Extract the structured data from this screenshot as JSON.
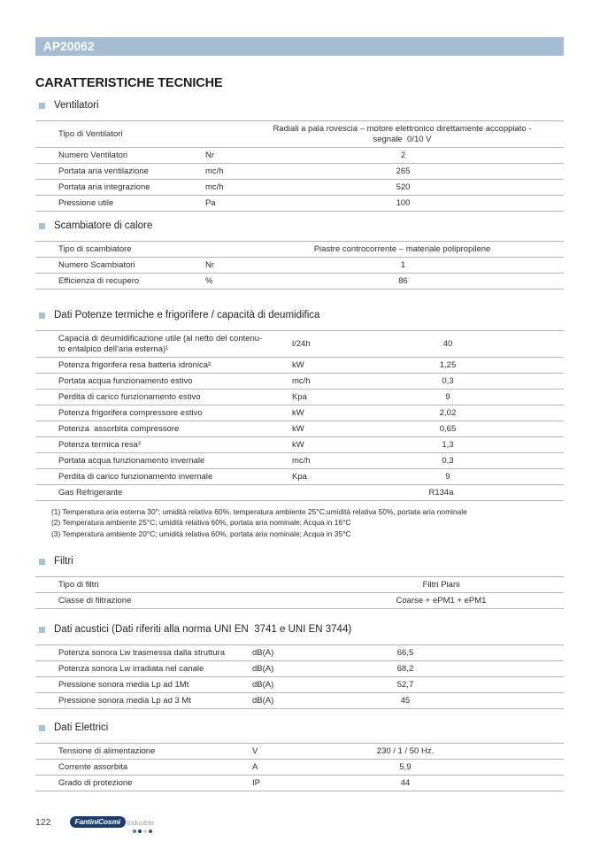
{
  "page": {
    "code": "AP20062",
    "title": "CARATTERISTICHE TECNICHE"
  },
  "colors": {
    "header_bg": "#a5bdd3",
    "bullet": "#a5c1d8",
    "logo_navy": "#1d3c6e"
  },
  "sections": [
    {
      "heading": "Ventilatori",
      "rows": [
        {
          "label": "Tipo di Ventilatori",
          "unit": "",
          "value": "Radiali a pala rovescia – motore elettronico direttamente accoppiato -\nsegnale  0/10 V"
        },
        {
          "label": "Numero Ventilatori",
          "unit": "Nr",
          "value": "2"
        },
        {
          "label": "Portata aria ventilazione",
          "unit": "mc/h",
          "value": "265"
        },
        {
          "label": "Portata aria integrazione",
          "unit": "mc/h",
          "value": "520"
        },
        {
          "label": "Pressione utile",
          "unit": "Pa",
          "value": "100"
        }
      ]
    },
    {
      "heading": "Scambiatore di calore",
      "rows": [
        {
          "label": "Tipo di scambiatore",
          "unit": "",
          "value": "Piastre controcorrente – materiale polipropilene"
        },
        {
          "label": "Numero Scambiatori",
          "unit": "Nr",
          "value": "1"
        },
        {
          "label": "Efficienza di recupero",
          "unit": "%",
          "value": "86"
        }
      ]
    },
    {
      "heading": "Dati Potenze termiche e frigorifere / capacità di deumidifica",
      "rows": [
        {
          "label": "Capacià di deumidificazione utile (al netto del contenu-\nto entalpico dell'aria esterna)¹",
          "unit": "l/24h",
          "value": "40"
        },
        {
          "label": "Potenza frigorifera resa batteria idronica²",
          "unit": "kW",
          "value": "1,25"
        },
        {
          "label": "Portata acqua funzionamento estivo",
          "unit": "mc/h",
          "value": "0,3"
        },
        {
          "label": "Perdita di carico funzionamento estivo",
          "unit": "Kpa",
          "value": "9"
        },
        {
          "label": "Potenza frigorifera compressore estivo",
          "unit": "kW",
          "value": "2,02"
        },
        {
          "label": "Potenza  assorbita compressore",
          "unit": "kW",
          "value": "0,65"
        },
        {
          "label": "Potenza termica resa³",
          "unit": "kW",
          "value": "1,3"
        },
        {
          "label": "Portata acqua funzionamento invernale",
          "unit": "mc/h",
          "value": "0,3"
        },
        {
          "label": "Perdita di carico funzionamento invernale",
          "unit": "Kpa",
          "value": "9"
        },
        {
          "label": "Gas Refrigerante",
          "unit": "",
          "value": "R134a"
        }
      ],
      "footnotes": [
        "(1) Temperatura aria esterna 30°; umidità relativa 60%. temperatura ambiente 25°C;umidità relativa 50%, portata aria nominale",
        "(2) Temperatura ambiente 25°C; umidità relativa 60%, portata aria nominale; Acqua in 16°C",
        "(3) Temperatura ambiente 20°C; umidità relativa 60%, portata aria nominale; Acqua in 35°C"
      ]
    },
    {
      "heading": "Filtri",
      "rows": [
        {
          "label": "Tipo di filtri",
          "unit": "",
          "value": "Filtri Piani"
        },
        {
          "label": "Classe di filtrazione",
          "unit": "",
          "value": "Coarse + ePM1 + ePM1"
        }
      ]
    },
    {
      "heading": "Dati acustici (Dati riferiti alla norma UNI EN  3741 e UNI EN 3744)",
      "rows": [
        {
          "label": "Potenza sonora Lw trasmessa dalla struttura",
          "unit": "dB(A)",
          "value": "66,5"
        },
        {
          "label": "Potenza sonora Lw irradiata nel canale",
          "unit": "dB(A)",
          "value": "68,2"
        },
        {
          "label": "Pressione sonora media Lp ad 1Mt",
          "unit": "dB(A)",
          "value": "52,7"
        },
        {
          "label": "Pressione sonora media Lp ad 3 Mt",
          "unit": "dB(A)",
          "value": "45"
        }
      ]
    },
    {
      "heading": "Dati Elettrici",
      "rows": [
        {
          "label": "Tensione di alimentazione",
          "unit": "V",
          "value": "230 / 1 / 50 Hz."
        },
        {
          "label": "Corrente assorbita",
          "unit": "A",
          "value": "5,9"
        },
        {
          "label": "Grado di protezione",
          "unit": "IP",
          "value": "44"
        }
      ]
    }
  ],
  "footer": {
    "page_number": "122",
    "logo": {
      "primary": "FantiniCosmi",
      "secondary": "Industrie",
      "dots": [
        "#4a76b0",
        "#1d3c6e",
        "#c9ced3",
        "#2b5a93"
      ]
    }
  }
}
